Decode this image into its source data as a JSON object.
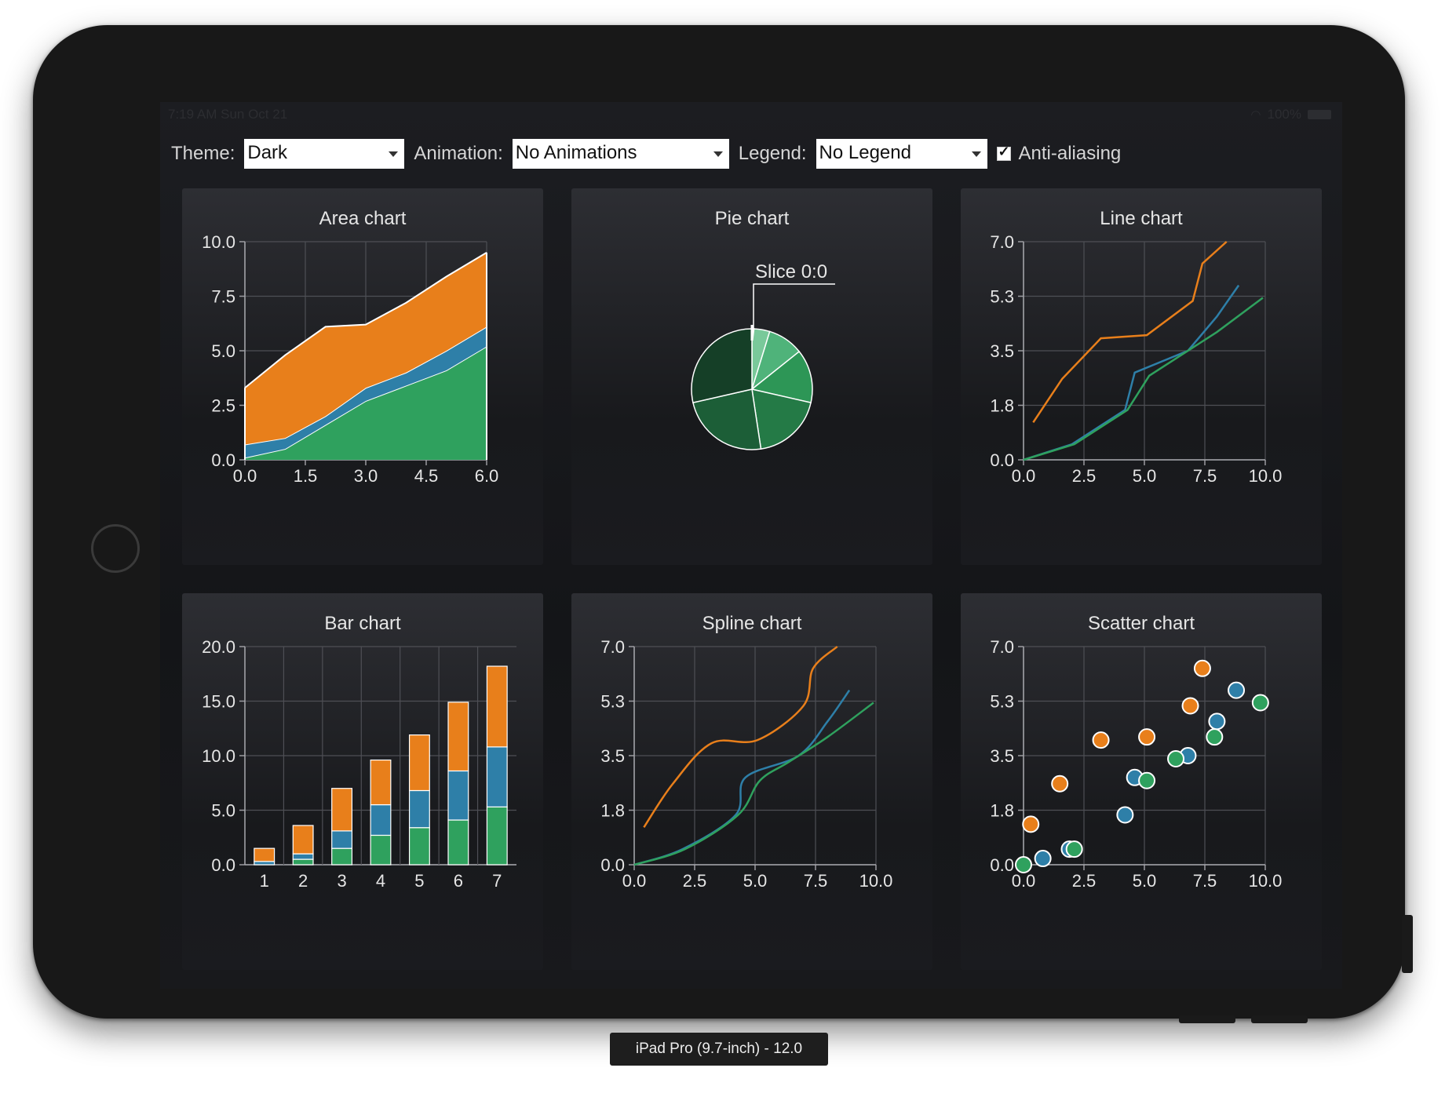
{
  "status_bar": {
    "time": "7:19 AM",
    "date": "Sun Oct 21",
    "battery": "100%"
  },
  "toolbar": {
    "theme_label": "Theme:",
    "theme_value": "Dark",
    "animation_label": "Animation:",
    "animation_value": "No Animations",
    "legend_label": "Legend:",
    "legend_value": "No Legend",
    "antialiasing_label": "Anti-aliasing",
    "antialiasing_checked": true
  },
  "simulator_label": "iPad Pro (9.7-inch) - 12.0",
  "colors": {
    "orange": "#e87f1b",
    "blue": "#2e7fa8",
    "green": "#2fa15e"
  },
  "chart_data": [
    {
      "type": "area",
      "title": "Area chart",
      "stacked": true,
      "x": [
        0,
        1,
        2,
        3,
        4,
        5,
        6
      ],
      "xticks": [
        "0.0",
        "1.5",
        "3.0",
        "4.5",
        "6.0"
      ],
      "xlim": [
        0,
        6
      ],
      "yticks": [
        "0.0",
        "2.5",
        "5.0",
        "7.5",
        "10.0"
      ],
      "ylim": [
        0,
        10
      ],
      "series": [
        {
          "values": [
            0.1,
            0.5,
            1.6,
            2.7,
            3.4,
            4.1,
            5.2
          ]
        },
        {
          "values": [
            0.6,
            0.5,
            0.4,
            0.6,
            0.6,
            0.9,
            0.9
          ]
        },
        {
          "values": [
            2.6,
            3.8,
            4.1,
            2.9,
            3.2,
            3.4,
            3.4
          ]
        }
      ]
    },
    {
      "type": "pie",
      "title": "Pie chart",
      "label": "Slice 0:0",
      "values": [
        1,
        2,
        3,
        4,
        5,
        6
      ],
      "colors": [
        "#79c99a",
        "#4fb37a",
        "#2d9656",
        "#247a46",
        "#1c5e37",
        "#153f27"
      ]
    },
    {
      "type": "line",
      "title": "Line chart",
      "xticks": [
        "0.0",
        "2.5",
        "5.0",
        "7.5",
        "10.0"
      ],
      "xlim": [
        0,
        10
      ],
      "yticks": [
        "0.0",
        "1.8",
        "3.5",
        "5.3",
        "7.0"
      ],
      "ylim": [
        0,
        7
      ],
      "series": [
        {
          "points": [
            [
              0.4,
              1.2
            ],
            [
              1.6,
              2.6
            ],
            [
              3.2,
              3.9
            ],
            [
              5.1,
              4.0
            ],
            [
              7.0,
              5.1
            ],
            [
              7.4,
              6.3
            ],
            [
              8.4,
              7.0
            ]
          ]
        },
        {
          "points": [
            [
              0,
              0
            ],
            [
              2.0,
              0.5
            ],
            [
              4.2,
              1.6
            ],
            [
              4.6,
              2.8
            ],
            [
              6.8,
              3.5
            ],
            [
              8.0,
              4.6
            ],
            [
              8.9,
              5.6
            ]
          ]
        },
        {
          "points": [
            [
              0,
              0
            ],
            [
              2.1,
              0.5
            ],
            [
              4.3,
              1.6
            ],
            [
              5.2,
              2.7
            ],
            [
              6.4,
              3.3
            ],
            [
              8.0,
              4.1
            ],
            [
              9.9,
              5.2
            ]
          ]
        }
      ]
    },
    {
      "type": "bar",
      "title": "Bar chart",
      "stacked": true,
      "categories": [
        "1",
        "2",
        "3",
        "4",
        "5",
        "6",
        "7"
      ],
      "yticks": [
        "0.0",
        "5.0",
        "10.0",
        "15.0",
        "20.0"
      ],
      "ylim": [
        0,
        20
      ],
      "series": [
        {
          "values": [
            0,
            0.5,
            1.5,
            2.7,
            3.4,
            4.1,
            5.3
          ]
        },
        {
          "values": [
            0.3,
            0.5,
            1.6,
            2.8,
            3.4,
            4.5,
            5.5
          ]
        },
        {
          "values": [
            1.2,
            2.6,
            3.9,
            4.1,
            5.1,
            6.3,
            7.4
          ]
        }
      ]
    },
    {
      "type": "spline",
      "title": "Spline chart",
      "xticks": [
        "0.0",
        "2.5",
        "5.0",
        "7.5",
        "10.0"
      ],
      "xlim": [
        0,
        10
      ],
      "yticks": [
        "0.0",
        "1.8",
        "3.5",
        "5.3",
        "7.0"
      ],
      "ylim": [
        0,
        7
      ],
      "series": [
        {
          "points": [
            [
              0.4,
              1.2
            ],
            [
              1.6,
              2.6
            ],
            [
              3.2,
              3.9
            ],
            [
              5.1,
              4.0
            ],
            [
              7.0,
              5.1
            ],
            [
              7.4,
              6.3
            ],
            [
              8.4,
              7.0
            ]
          ]
        },
        {
          "points": [
            [
              0,
              0
            ],
            [
              2.0,
              0.5
            ],
            [
              4.2,
              1.6
            ],
            [
              4.6,
              2.8
            ],
            [
              6.8,
              3.5
            ],
            [
              8.0,
              4.6
            ],
            [
              8.9,
              5.6
            ]
          ]
        },
        {
          "points": [
            [
              0,
              0
            ],
            [
              2.1,
              0.5
            ],
            [
              4.3,
              1.6
            ],
            [
              5.2,
              2.7
            ],
            [
              6.4,
              3.3
            ],
            [
              8.0,
              4.1
            ],
            [
              9.9,
              5.2
            ]
          ]
        }
      ]
    },
    {
      "type": "scatter",
      "title": "Scatter chart",
      "xticks": [
        "0.0",
        "2.5",
        "5.0",
        "7.5",
        "10.0"
      ],
      "xlim": [
        0,
        10
      ],
      "yticks": [
        "0.0",
        "1.8",
        "3.5",
        "5.3",
        "7.0"
      ],
      "ylim": [
        0,
        7
      ],
      "series": [
        {
          "points": [
            [
              0.3,
              1.3
            ],
            [
              1.5,
              2.6
            ],
            [
              3.2,
              4.0
            ],
            [
              5.1,
              4.1
            ],
            [
              6.9,
              5.1
            ],
            [
              7.4,
              6.3
            ]
          ]
        },
        {
          "points": [
            [
              0.8,
              0.2
            ],
            [
              1.9,
              0.5
            ],
            [
              4.2,
              1.6
            ],
            [
              4.6,
              2.8
            ],
            [
              6.8,
              3.5
            ],
            [
              8.0,
              4.6
            ],
            [
              8.8,
              5.6
            ]
          ]
        },
        {
          "points": [
            [
              0,
              0
            ],
            [
              2.1,
              0.5
            ],
            [
              5.1,
              2.7
            ],
            [
              6.3,
              3.4
            ],
            [
              7.9,
              4.1
            ],
            [
              9.8,
              5.2
            ]
          ]
        }
      ]
    }
  ]
}
